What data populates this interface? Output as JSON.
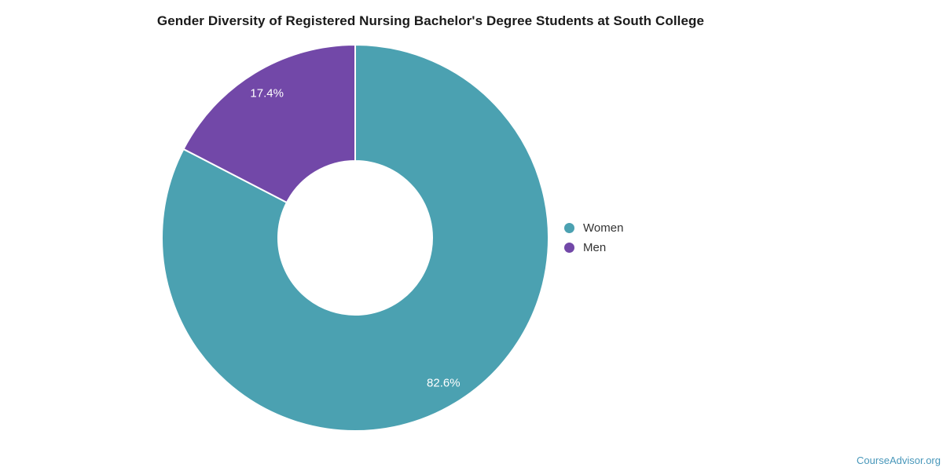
{
  "title": "Gender Diversity of Registered Nursing Bachelor's Degree Students at South College",
  "watermark": {
    "text": "CourseAdvisor.org",
    "color": "#4897BA"
  },
  "chart_data": {
    "type": "pie",
    "subtype": "donut",
    "title": "Gender Diversity of Registered Nursing Bachelor's Degree Students at South College",
    "categories": [
      "Women",
      "Men"
    ],
    "values": [
      82.6,
      17.4
    ],
    "unit": "%",
    "data_labels": [
      "82.6%",
      "17.4%"
    ],
    "colors": [
      "#4BA1B1",
      "#7248A8"
    ],
    "slice_border_color": "#FFFFFF",
    "start_angle_deg": 0,
    "direction": "clockwise",
    "inner_radius_ratio": 0.4,
    "legend": {
      "position": "right",
      "entries": [
        "Women",
        "Men"
      ]
    }
  }
}
